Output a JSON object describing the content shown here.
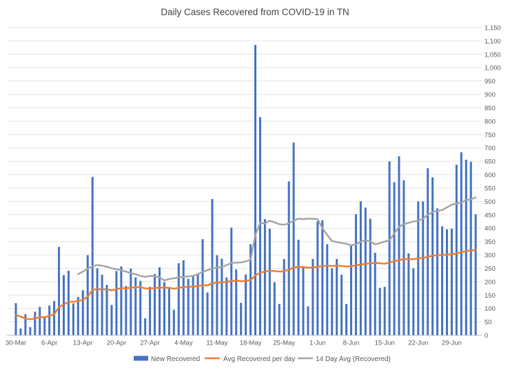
{
  "title": "Daily Cases Recovered from COVID-19 in TN",
  "colors": {
    "bar_blue": "#4472C4",
    "avg_orange": "#ED7D31",
    "avg14_gray": "#A5A5A5",
    "gridline": "#E3E3E3",
    "axis_line": "#C3C3C3",
    "text_gray": "#595959"
  },
  "legend": [
    {
      "label": "New Recovered",
      "color": "#4472C4",
      "type": "bar"
    },
    {
      "label": "Avg Recovered per day",
      "color": "#ED7D31",
      "type": "line"
    },
    {
      "label": "14 Day Avg (Recovered)",
      "color": "#A5A5A5",
      "type": "line"
    }
  ],
  "axes": {
    "y_tick_labels": [
      "0",
      "50",
      "100",
      "150",
      "200",
      "250",
      "300",
      "350",
      "400",
      "450",
      "500",
      "550",
      "600",
      "650",
      "700",
      "750",
      "800",
      "850",
      "900",
      "950",
      "1,000",
      "1,050",
      "1,100",
      "1,150"
    ],
    "x_tick_labels": [
      "30-Mar",
      "6-Apr",
      "13-Apr",
      "20-Apr",
      "27-Apr",
      "4-May",
      "11-May",
      "18-May",
      "25-May",
      "1-Jun",
      "8-Jun",
      "15-Jun",
      "22-Jun",
      "29-Jun"
    ]
  },
  "chart_data": {
    "type": "bar",
    "title": "Daily Cases Recovered from COVID-19 in TN",
    "xlabel": "",
    "ylabel": "",
    "ylim": [
      0,
      1150
    ],
    "y_tick_step": 50,
    "grid": "horizontal",
    "legend_position": "bottom",
    "y_axis_side": "right",
    "categories": [
      "30-Mar",
      "31-Mar",
      "1-Apr",
      "2-Apr",
      "3-Apr",
      "4-Apr",
      "5-Apr",
      "6-Apr",
      "7-Apr",
      "8-Apr",
      "9-Apr",
      "10-Apr",
      "11-Apr",
      "12-Apr",
      "13-Apr",
      "14-Apr",
      "15-Apr",
      "16-Apr",
      "17-Apr",
      "18-Apr",
      "19-Apr",
      "20-Apr",
      "21-Apr",
      "22-Apr",
      "23-Apr",
      "24-Apr",
      "25-Apr",
      "26-Apr",
      "27-Apr",
      "28-Apr",
      "29-Apr",
      "30-Apr",
      "1-May",
      "2-May",
      "3-May",
      "4-May",
      "5-May",
      "6-May",
      "7-May",
      "8-May",
      "9-May",
      "10-May",
      "11-May",
      "12-May",
      "13-May",
      "14-May",
      "15-May",
      "16-May",
      "17-May",
      "18-May",
      "19-May",
      "20-May",
      "21-May",
      "22-May",
      "23-May",
      "24-May",
      "25-May",
      "26-May",
      "27-May",
      "28-May",
      "29-May",
      "30-May",
      "31-May",
      "1-Jun",
      "2-Jun",
      "3-Jun",
      "4-Jun",
      "5-Jun",
      "6-Jun",
      "7-Jun",
      "8-Jun",
      "9-Jun",
      "10-Jun",
      "11-Jun",
      "12-Jun",
      "13-Jun",
      "14-Jun",
      "15-Jun",
      "16-Jun",
      "17-Jun",
      "18-Jun",
      "19-Jun",
      "20-Jun",
      "21-Jun",
      "22-Jun",
      "23-Jun",
      "24-Jun",
      "25-Jun",
      "26-Jun",
      "27-Jun",
      "28-Jun",
      "29-Jun",
      "30-Jun",
      "1-Jul",
      "2-Jul",
      "3-Jul",
      "4-Jul"
    ],
    "series": [
      {
        "name": "New Recovered",
        "type": "bar",
        "color": "#4472C4",
        "values": [
          120,
          25,
          78,
          30,
          88,
          106,
          66,
          111,
          128,
          330,
          225,
          241,
          119,
          143,
          168,
          299,
          592,
          250,
          226,
          188,
          113,
          240,
          257,
          184,
          249,
          216,
          203,
          63,
          181,
          229,
          254,
          198,
          177,
          95,
          269,
          280,
          211,
          220,
          230,
          359,
          160,
          509,
          299,
          286,
          216,
          402,
          246,
          121,
          227,
          340,
          1085,
          815,
          434,
          398,
          198,
          117,
          285,
          575,
          720,
          357,
          254,
          108,
          285,
          426,
          430,
          340,
          250,
          285,
          226,
          117,
          336,
          452,
          500,
          477,
          435,
          308,
          177,
          181,
          650,
          572,
          669,
          579,
          306,
          250,
          500,
          500,
          624,
          590,
          474,
          407,
          396,
          398,
          637,
          684,
          656,
          648,
          452
        ]
      },
      {
        "name": "Avg Recovered per day",
        "type": "line",
        "color": "#ED7D31",
        "values": [
          75,
          70,
          62,
          60,
          62,
          68,
          67,
          72,
          78,
          105,
          115,
          125,
          125,
          128,
          132,
          144,
          170,
          172,
          172,
          172,
          168,
          172,
          176,
          175,
          178,
          179,
          180,
          175,
          174,
          176,
          178,
          178,
          177,
          174,
          177,
          180,
          181,
          182,
          183,
          187,
          186,
          194,
          196,
          198,
          199,
          203,
          204,
          202,
          203,
          206,
          223,
          234,
          238,
          241,
          240,
          238,
          239,
          245,
          253,
          255,
          255,
          252,
          253,
          256,
          258,
          260,
          259,
          260,
          259,
          257,
          258,
          261,
          264,
          267,
          269,
          270,
          269,
          267,
          272,
          276,
          281,
          284,
          285,
          284,
          287,
          289,
          293,
          297,
          299,
          300,
          301,
          302,
          306,
          310,
          314,
          317,
          318
        ]
      },
      {
        "name": "14 Day Avg (Recovered)",
        "type": "line",
        "color": "#A5A5A5",
        "values": [
          null,
          null,
          null,
          null,
          null,
          null,
          null,
          null,
          null,
          null,
          null,
          null,
          null,
          228,
          238,
          248,
          258,
          262,
          260,
          256,
          250,
          247,
          243,
          238,
          232,
          228,
          222,
          218,
          222,
          220,
          216,
          205,
          210,
          213,
          216,
          218,
          220,
          222,
          228,
          237,
          243,
          250,
          252,
          255,
          262,
          270,
          271,
          272,
          276,
          282,
          375,
          420,
          418,
          428,
          422,
          415,
          413,
          418,
          428,
          436,
          434,
          436,
          435,
          434,
          400,
          375,
          352,
          348,
          345,
          342,
          336,
          340,
          350,
          355,
          350,
          340,
          344,
          350,
          355,
          380,
          405,
          415,
          420,
          425,
          428,
          435,
          450,
          460,
          465,
          468,
          478,
          488,
          492,
          495,
          505,
          508,
          515
        ]
      }
    ]
  }
}
